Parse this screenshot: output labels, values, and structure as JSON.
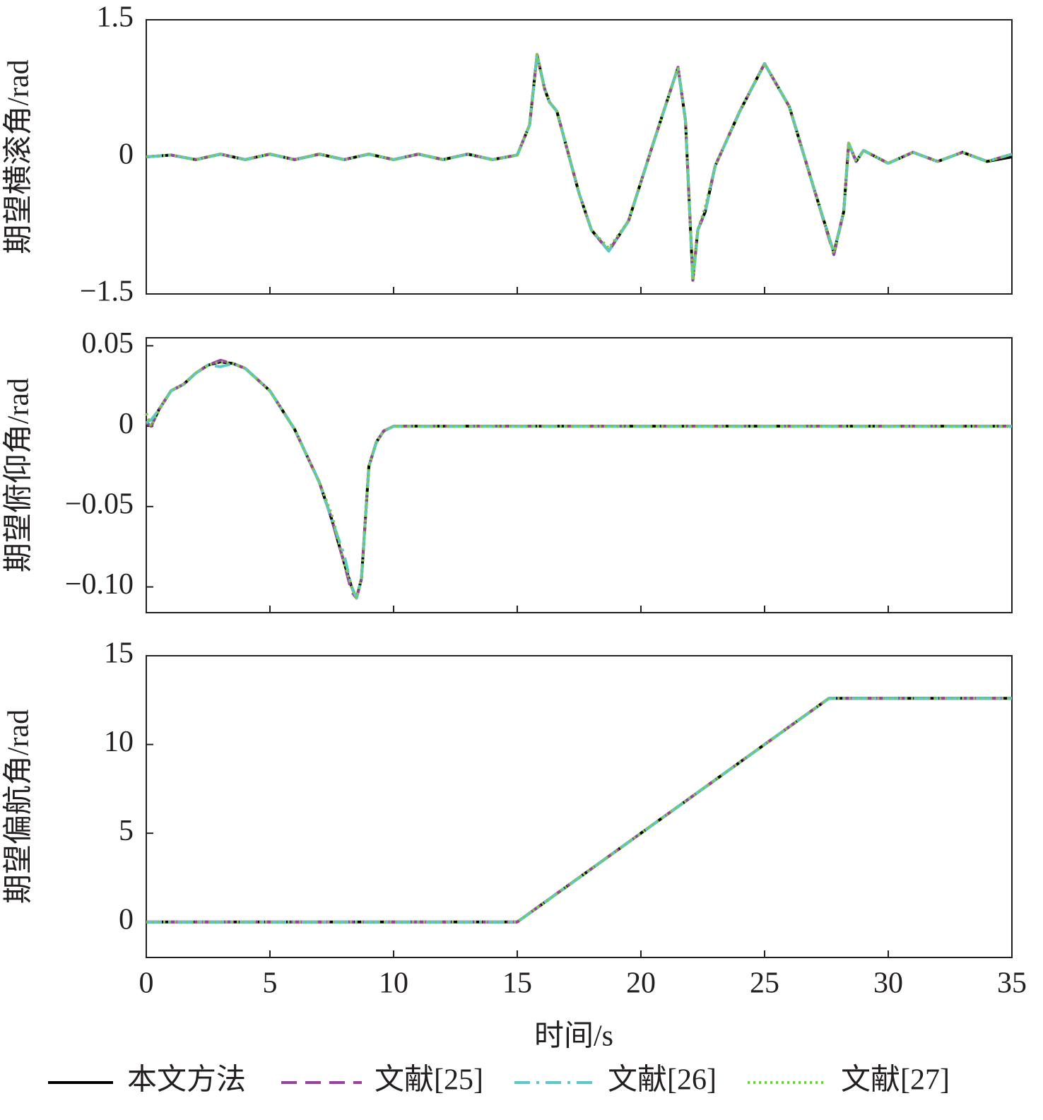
{
  "chart_data": [
    {
      "type": "line",
      "ylabel": "期望横滚角/rad",
      "xlim": [
        0,
        35
      ],
      "xticks": [
        0,
        5,
        10,
        15,
        20,
        25,
        30,
        35
      ],
      "ylim": [
        -1.5,
        1.5
      ],
      "yticks": [
        {
          "value": -1.5,
          "label": "−1.5"
        },
        0,
        1.5
      ],
      "x": [
        0,
        1,
        2,
        3,
        4,
        5,
        6,
        7,
        8,
        9,
        10,
        11,
        12,
        13,
        14,
        15,
        15.5,
        15.8,
        16.1,
        16.3,
        16.6,
        17,
        17.5,
        18,
        18.7,
        19.5,
        20.5,
        21.5,
        21.8,
        22.1,
        22.3,
        22.6,
        23,
        24,
        25,
        26,
        27,
        27.8,
        28.2,
        28.4,
        28.7,
        29,
        30,
        31,
        32,
        33,
        34,
        35
      ],
      "series": [
        {
          "name": "本文方法",
          "color": "#000000",
          "linestyle": "solid",
          "values": [
            0,
            0.02,
            -0.03,
            0.03,
            -0.03,
            0.03,
            -0.03,
            0.03,
            -0.03,
            0.03,
            -0.03,
            0.03,
            -0.03,
            0.03,
            -0.03,
            0.02,
            0.35,
            1.12,
            0.75,
            0.6,
            0.5,
            0.1,
            -0.4,
            -0.8,
            -1.03,
            -0.7,
            0.15,
            0.98,
            0.4,
            -1.35,
            -0.8,
            -0.6,
            -0.1,
            0.5,
            1.02,
            0.55,
            -0.35,
            -1.05,
            -0.6,
            0.15,
            -0.05,
            0.07,
            -0.07,
            0.05,
            -0.05,
            0.05,
            -0.05,
            0
          ]
        },
        {
          "name": "文献[25]",
          "color": "#9b3fa0",
          "linestyle": "dashed",
          "values": [
            0,
            0.02,
            -0.03,
            0.03,
            -0.03,
            0.03,
            -0.03,
            0.03,
            -0.03,
            0.03,
            -0.03,
            0.03,
            -0.03,
            0.03,
            -0.03,
            0.02,
            0.35,
            1.12,
            0.75,
            0.6,
            0.5,
            0.1,
            -0.4,
            -0.8,
            -1.03,
            -0.7,
            0.15,
            0.98,
            0.4,
            -1.35,
            -0.8,
            -0.6,
            -0.1,
            0.5,
            1.02,
            0.55,
            -0.35,
            -1.07,
            -0.6,
            0.15,
            -0.05,
            0.07,
            -0.07,
            0.05,
            -0.05,
            0.05,
            -0.05,
            0.03
          ]
        },
        {
          "name": "文献[26]",
          "color": "#5bc8cf",
          "linestyle": "dashdot",
          "values": [
            0,
            0.02,
            -0.03,
            0.03,
            -0.03,
            0.03,
            -0.03,
            0.03,
            -0.03,
            0.03,
            -0.03,
            0.03,
            -0.03,
            0.03,
            -0.03,
            0.02,
            0.35,
            1.12,
            0.75,
            0.6,
            0.5,
            0.1,
            -0.4,
            -0.8,
            -1.03,
            -0.7,
            0.15,
            0.98,
            0.4,
            -1.37,
            -0.8,
            -0.6,
            -0.1,
            0.5,
            1.02,
            0.55,
            -0.35,
            -1.05,
            -0.6,
            0.15,
            -0.05,
            0.07,
            -0.07,
            0.05,
            -0.05,
            0.05,
            -0.05,
            0.03
          ]
        },
        {
          "name": "文献[27]",
          "color": "#7ac943",
          "linestyle": "dotted",
          "values": [
            0,
            0.02,
            -0.03,
            0.03,
            -0.03,
            0.03,
            -0.03,
            0.03,
            -0.03,
            0.03,
            -0.03,
            0.03,
            -0.03,
            0.03,
            -0.03,
            0.02,
            0.35,
            1.12,
            0.75,
            0.6,
            0.5,
            0.1,
            -0.4,
            -0.8,
            -1.0,
            -0.7,
            0.15,
            0.98,
            0.4,
            -1.35,
            -0.8,
            -0.55,
            -0.1,
            0.5,
            1.02,
            0.55,
            -0.35,
            -1.05,
            -0.6,
            0.15,
            -0.05,
            0.07,
            -0.07,
            0.05,
            -0.05,
            0.05,
            -0.05,
            0.03
          ]
        }
      ]
    },
    {
      "type": "line",
      "ylabel": "期望俯仰角/rad",
      "xlim": [
        0,
        35
      ],
      "xticks": [
        0,
        5,
        10,
        15,
        20,
        25,
        30,
        35
      ],
      "ylim": [
        -0.116,
        0.055
      ],
      "yticks": [
        {
          "value": -0.1,
          "label": "−0.10"
        },
        {
          "value": -0.05,
          "label": "−0.05"
        },
        0,
        0.05
      ],
      "x": [
        0,
        0.2,
        0.5,
        1,
        1.5,
        2,
        2.5,
        3,
        3.5,
        4,
        5,
        6,
        7,
        7.5,
        8,
        8.3,
        8.5,
        8.7,
        9,
        9.3,
        9.6,
        10,
        10.5,
        11,
        15,
        20,
        25,
        30,
        35
      ],
      "series": [
        {
          "name": "本文方法",
          "color": "#000000",
          "linestyle": "solid",
          "values": [
            0.002,
            0.0,
            0.01,
            0.022,
            0.026,
            0.033,
            0.038,
            0.04,
            0.039,
            0.036,
            0.022,
            -0.002,
            -0.035,
            -0.058,
            -0.085,
            -0.1,
            -0.107,
            -0.095,
            -0.025,
            -0.01,
            -0.003,
            0,
            0,
            0,
            0,
            0,
            0,
            0,
            0
          ]
        },
        {
          "name": "文献[25]",
          "color": "#9b3fa0",
          "linestyle": "dashed",
          "values": [
            0.002,
            0.0,
            0.01,
            0.022,
            0.026,
            0.033,
            0.038,
            0.041,
            0.039,
            0.036,
            0.022,
            -0.002,
            -0.035,
            -0.058,
            -0.085,
            -0.103,
            -0.107,
            -0.095,
            -0.025,
            -0.01,
            -0.003,
            0,
            0,
            0,
            0,
            0,
            0,
            0,
            0
          ]
        },
        {
          "name": "文献[26]",
          "color": "#5bc8cf",
          "linestyle": "dashdot",
          "values": [
            0.002,
            0.004,
            0.01,
            0.022,
            0.026,
            0.033,
            0.038,
            0.037,
            0.039,
            0.036,
            0.022,
            -0.002,
            -0.035,
            -0.058,
            -0.08,
            -0.1,
            -0.107,
            -0.095,
            -0.025,
            -0.01,
            -0.003,
            0,
            0,
            0,
            0,
            0,
            0,
            0,
            0
          ]
        },
        {
          "name": "文献[27]",
          "color": "#7ac943",
          "linestyle": "dotted",
          "values": [
            0.008,
            0.0,
            0.01,
            0.022,
            0.026,
            0.033,
            0.038,
            0.04,
            0.039,
            0.036,
            0.022,
            -0.002,
            -0.035,
            -0.055,
            -0.085,
            -0.1,
            -0.107,
            -0.095,
            -0.025,
            -0.01,
            -0.003,
            0,
            0,
            0,
            0,
            0,
            0,
            0,
            0
          ]
        }
      ]
    },
    {
      "type": "line",
      "ylabel": "期望偏航角/rad",
      "xlabel": "时间/s",
      "xlim": [
        0,
        35
      ],
      "xticks": [
        0,
        5,
        10,
        15,
        20,
        25,
        30,
        35
      ],
      "ylim": [
        -2,
        15
      ],
      "yticks": [
        0,
        5,
        10,
        15
      ],
      "x": [
        0,
        15,
        27.6,
        35
      ],
      "series": [
        {
          "name": "本文方法",
          "color": "#000000",
          "linestyle": "solid",
          "values": [
            0,
            0,
            12.6,
            12.6
          ]
        },
        {
          "name": "文献[25]",
          "color": "#9b3fa0",
          "linestyle": "dashed",
          "values": [
            0,
            0,
            12.6,
            12.6
          ]
        },
        {
          "name": "文献[26]",
          "color": "#5bc8cf",
          "linestyle": "dashdot",
          "values": [
            0,
            0,
            12.6,
            12.6
          ]
        },
        {
          "name": "文献[27]",
          "color": "#7ac943",
          "linestyle": "dotted",
          "values": [
            0,
            0,
            12.6,
            12.6
          ]
        }
      ]
    }
  ]
}
